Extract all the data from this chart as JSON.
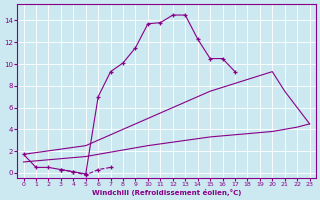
{
  "xlabel": "Windchill (Refroidissement éolien,°C)",
  "background_color": "#cce8f0",
  "line_color": "#880088",
  "xlim": [
    -0.5,
    23.5
  ],
  "ylim": [
    -0.5,
    15.5
  ],
  "yticks": [
    0,
    2,
    4,
    6,
    8,
    10,
    12,
    14
  ],
  "xticks": [
    0,
    1,
    2,
    3,
    4,
    5,
    6,
    7,
    8,
    9,
    10,
    11,
    12,
    13,
    14,
    15,
    16,
    17,
    18,
    19,
    20,
    21,
    22,
    23
  ],
  "series": [
    {
      "x": [
        0,
        1,
        2,
        3,
        4,
        5,
        6,
        7,
        8,
        9,
        10,
        11,
        12,
        13,
        14,
        15,
        16,
        17,
        18,
        19,
        20,
        21,
        22,
        23
      ],
      "y": [
        1.7,
        0.5,
        0.5,
        0.3,
        0.1,
        -0.1,
        7.0,
        9.3,
        10.1,
        11.5,
        13.7,
        13.8,
        14.5,
        14.5,
        12.3,
        10.5,
        10.5,
        9.3,
        null,
        null,
        null,
        null,
        null,
        null
      ],
      "marker": true,
      "dashed": false
    },
    {
      "x": [
        3,
        4,
        5,
        6,
        7
      ],
      "y": [
        0.3,
        0.1,
        -0.2,
        0.3,
        0.5
      ],
      "marker": true,
      "dashed": true
    },
    {
      "x": [
        0,
        5,
        10,
        15,
        20,
        21,
        22,
        23
      ],
      "y": [
        1.7,
        2.5,
        5.0,
        7.5,
        9.3,
        7.5,
        6.0,
        4.5
      ],
      "marker": false,
      "dashed": false
    },
    {
      "x": [
        0,
        5,
        10,
        15,
        20,
        21,
        22,
        23
      ],
      "y": [
        1.0,
        1.5,
        2.5,
        3.3,
        3.8,
        4.0,
        4.2,
        4.5
      ],
      "marker": false,
      "dashed": false
    }
  ]
}
